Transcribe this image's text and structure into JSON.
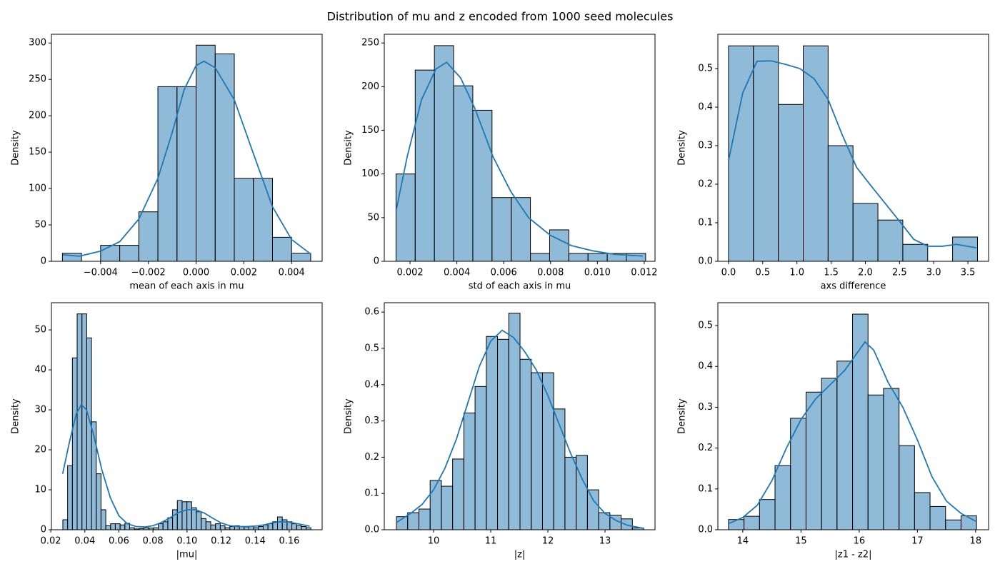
{
  "title": "Distribution of mu and z encoded from 1000 seed molecules",
  "chart_data": [
    {
      "type": "histogram",
      "xlabel": "mean of each axis in mu",
      "ylabel": "Density",
      "color": "#1f77b4",
      "edgecolor": "#000000",
      "bins": [
        -0.0056,
        -0.0048,
        -0.004,
        -0.0032,
        -0.0024,
        -0.0016,
        -0.0008,
        0,
        0.0008,
        0.0016,
        0.0024,
        0.0032,
        0.004,
        0.0048
      ],
      "values": [
        11,
        0,
        22,
        22,
        68,
        240,
        240,
        297,
        285,
        114,
        114,
        33,
        11
      ],
      "kde": {
        "x": [
          -0.00558,
          -0.0049,
          -0.004,
          -0.0032,
          -0.0024,
          -0.0016,
          -0.001,
          -0.0005,
          0,
          0.00033,
          0.0008,
          0.0016,
          0.0024,
          0.0032,
          0.004,
          0.0048
        ],
        "values": [
          9,
          7,
          14,
          27,
          58,
          114,
          177,
          236,
          269,
          275,
          266,
          222,
          148,
          75,
          30,
          10
        ]
      },
      "xlim": [
        -0.00606,
        0.00528
      ],
      "ylim": [
        0,
        312
      ],
      "xticks": [
        {
          "value": -0.004,
          "label": "−0.004"
        },
        {
          "value": -0.002,
          "label": "−0.002"
        },
        {
          "value": 0,
          "label": "0.000"
        },
        0.002,
        0.004
      ],
      "yticks": [
        0,
        50,
        100,
        150,
        200,
        250,
        300
      ]
    },
    {
      "type": "histogram",
      "xlabel": "std of each axis in mu",
      "ylabel": "Density",
      "color": "#1f77b4",
      "edgecolor": "#000000",
      "bins": [
        0.0014,
        0.00222,
        0.00304,
        0.00386,
        0.00468,
        0.0055,
        0.00632,
        0.00714,
        0.00796,
        0.00878,
        0.0096,
        0.01042,
        0.01124,
        0.01206
      ],
      "values": [
        100,
        219,
        247,
        201,
        173,
        73,
        73,
        9,
        36,
        9,
        9,
        9,
        9
      ],
      "kde": {
        "x": [
          0.00142,
          0.00188,
          0.00249,
          0.0031,
          0.00356,
          0.00416,
          0.00477,
          0.00554,
          0.0063,
          0.00706,
          0.00798,
          0.00889,
          0.0098,
          0.01072,
          0.01194
        ],
        "values": [
          60,
          120,
          185,
          220,
          228,
          210,
          175,
          120,
          80,
          50,
          30,
          18,
          12,
          8,
          6
        ]
      },
      "xlim": [
        0.0009,
        0.01246
      ],
      "ylim": [
        0,
        260
      ],
      "xticks": [
        0.002,
        0.004,
        0.006,
        0.008,
        {
          "value": 0.01,
          "label": "0.010"
        },
        0.012
      ],
      "yticks": [
        0,
        50,
        100,
        150,
        200,
        250
      ]
    },
    {
      "type": "histogram",
      "xlabel": "axs difference",
      "ylabel": "Density",
      "color": "#1f77b4",
      "edgecolor": "#000000",
      "bins": [
        0,
        0.364,
        0.728,
        1.092,
        1.456,
        1.82,
        2.184,
        2.548,
        2.912,
        3.276,
        3.64
      ],
      "values": [
        0.559,
        0.559,
        0.407,
        0.559,
        0.3,
        0.15,
        0.107,
        0.044,
        0,
        0.063
      ],
      "kde": {
        "x": [
          0,
          0.208,
          0.417,
          0.625,
          0.833,
          1.042,
          1.25,
          1.458,
          1.667,
          1.875,
          2.083,
          2.292,
          2.5,
          2.708,
          2.917,
          3.125,
          3.333,
          3.625
        ],
        "values": [
          0.261,
          0.437,
          0.519,
          0.52,
          0.511,
          0.5,
          0.474,
          0.419,
          0.326,
          0.243,
          0.196,
          0.15,
          0.104,
          0.057,
          0.039,
          0.039,
          0.044,
          0.035
        ]
      },
      "xlim": [
        -0.156,
        3.802
      ],
      "ylim": [
        0,
        0.589
      ],
      "xticks": [
        {
          "value": 0,
          "label": "0.0"
        },
        0.5,
        {
          "value": 1,
          "label": "1.0"
        },
        1.5,
        {
          "value": 2,
          "label": "2.0"
        },
        2.5,
        {
          "value": 3,
          "label": "3.0"
        },
        3.5
      ],
      "yticks": [
        {
          "value": 0,
          "label": "0.0"
        },
        0.1,
        0.2,
        0.3,
        0.4,
        0.5
      ]
    },
    {
      "type": "histogram",
      "xlabel": "|mu|",
      "ylabel": "Density",
      "color": "#1f77b4",
      "edgecolor": "#000000",
      "bins": [
        0.0271,
        0.0299,
        0.0327,
        0.0355,
        0.0383,
        0.0411,
        0.0439,
        0.0467,
        0.0495,
        0.0523,
        0.0551,
        0.0579,
        0.0607,
        0.0635,
        0.0663,
        0.0691,
        0.0719,
        0.0747,
        0.0775,
        0.0803,
        0.0831,
        0.0859,
        0.0887,
        0.0915,
        0.0943,
        0.0971,
        0.0999,
        0.1027,
        0.1055,
        0.1083,
        0.1111,
        0.1139,
        0.1167,
        0.1195,
        0.1223,
        0.1251,
        0.1279,
        0.1307,
        0.1335,
        0.1363,
        0.1391,
        0.1419,
        0.1447,
        0.1475,
        0.1503,
        0.1531,
        0.1559,
        0.1587,
        0.1615,
        0.1643,
        0.1671,
        0.1699,
        0.1727
      ],
      "values": [
        2.5,
        16,
        43,
        54,
        54,
        48,
        27,
        14,
        5,
        1,
        1.5,
        1.5,
        1.2,
        1.6,
        0.5,
        0.2,
        0.3,
        0.5,
        0.4,
        0.5,
        1.5,
        2,
        3,
        5,
        7.3,
        7,
        7,
        5.5,
        4.5,
        2.8,
        2,
        1.2,
        1.5,
        1,
        0.5,
        0.8,
        1,
        0.8,
        0.7,
        0.8,
        0.5,
        0.8,
        1.2,
        1.5,
        2,
        3.2,
        2.5,
        2,
        1.5,
        1,
        0.8,
        0.5
      ],
      "kde": {
        "x": [
          0.027,
          0.031,
          0.035,
          0.038,
          0.041,
          0.045,
          0.05,
          0.055,
          0.06,
          0.065,
          0.07,
          0.075,
          0.08,
          0.085,
          0.09,
          0.095,
          0.1,
          0.105,
          0.11,
          0.115,
          0.12,
          0.125,
          0.13,
          0.135,
          0.14,
          0.145,
          0.15,
          0.155,
          0.16,
          0.165,
          0.172
        ],
        "values": [
          14,
          22,
          29,
          31.3,
          30,
          24,
          15,
          8,
          3.5,
          1.5,
          0.8,
          0.7,
          1,
          1.8,
          3,
          4.3,
          5,
          5,
          4.2,
          2.9,
          1.7,
          1,
          0.8,
          0.8,
          0.9,
          1.2,
          1.7,
          2,
          1.9,
          1.5,
          0.9
        ]
      },
      "xlim": [
        0.0204,
        0.1793
      ],
      "ylim": [
        0,
        56.8
      ],
      "xticks": [
        0.02,
        0.04,
        0.06,
        0.08,
        {
          "value": 0.1,
          "label": "0.10"
        },
        0.12,
        0.14,
        0.16
      ],
      "yticks": [
        0,
        10,
        20,
        30,
        40,
        50
      ]
    },
    {
      "type": "histogram",
      "xlabel": "|z|",
      "ylabel": "Density",
      "color": "#1f77b4",
      "edgecolor": "#000000",
      "bins": [
        9.35,
        9.5466,
        9.7432,
        9.9398,
        10.1364,
        10.333,
        10.5296,
        10.7262,
        10.9228,
        11.1194,
        11.316,
        11.5126,
        11.7092,
        11.9058,
        12.1024,
        12.299,
        12.4956,
        12.6922,
        12.8888,
        13.0854,
        13.282,
        13.4786,
        13.6752
      ],
      "values": [
        0.036,
        0.047,
        0.057,
        0.136,
        0.12,
        0.195,
        0.322,
        0.395,
        0.533,
        0.525,
        0.597,
        0.47,
        0.433,
        0.433,
        0.333,
        0.2,
        0.205,
        0.11,
        0.047,
        0.04,
        0.03,
        0.005
      ],
      "kde": {
        "x": [
          9.35,
          9.6,
          9.8,
          10.0,
          10.2,
          10.4,
          10.6,
          10.8,
          11.0,
          11.2,
          11.4,
          11.6,
          11.8,
          12.0,
          12.2,
          12.4,
          12.6,
          12.8,
          13.0,
          13.2,
          13.4,
          13.675
        ],
        "values": [
          0.02,
          0.045,
          0.07,
          0.11,
          0.17,
          0.25,
          0.35,
          0.45,
          0.52,
          0.55,
          0.53,
          0.49,
          0.44,
          0.37,
          0.29,
          0.21,
          0.14,
          0.08,
          0.045,
          0.025,
          0.012,
          0.004
        ]
      },
      "xlim": [
        9.1375,
        13.875
      ],
      "ylim": [
        0,
        0.626
      ],
      "xticks": [
        10,
        11,
        12,
        13
      ],
      "yticks": [
        {
          "value": 0,
          "label": "0.0"
        },
        0.1,
        0.2,
        0.3,
        0.4,
        0.5,
        0.6
      ]
    },
    {
      "type": "histogram",
      "xlabel": "|z1 - z2|",
      "ylabel": "Density",
      "color": "#1f77b4",
      "edgecolor": "#000000",
      "bins": [
        13.755,
        14.021,
        14.288,
        14.554,
        14.82,
        15.087,
        15.353,
        15.619,
        15.886,
        16.152,
        16.418,
        16.685,
        16.951,
        17.217,
        17.484,
        17.75,
        18.016
      ],
      "values": [
        0.025,
        0.033,
        0.074,
        0.157,
        0.273,
        0.337,
        0.371,
        0.413,
        0.528,
        0.33,
        0.346,
        0.206,
        0.091,
        0.057,
        0.024,
        0.034
      ],
      "kde": {
        "x": [
          13.755,
          14.0,
          14.25,
          14.5,
          14.75,
          15.0,
          15.25,
          15.5,
          15.75,
          16.0,
          16.1,
          16.25,
          16.5,
          16.75,
          17.0,
          17.25,
          17.5,
          17.75,
          18.016
        ],
        "values": [
          0.015,
          0.03,
          0.06,
          0.12,
          0.2,
          0.27,
          0.32,
          0.355,
          0.39,
          0.44,
          0.46,
          0.44,
          0.36,
          0.3,
          0.22,
          0.13,
          0.07,
          0.04,
          0.02
        ]
      },
      "xlim": [
        13.572,
        18.223
      ],
      "ylim": [
        0,
        0.556
      ],
      "xticks": [
        14,
        15,
        16,
        17,
        18
      ],
      "yticks": [
        {
          "value": 0,
          "label": "0.0"
        },
        0.1,
        0.2,
        0.3,
        0.4,
        0.5
      ]
    }
  ]
}
